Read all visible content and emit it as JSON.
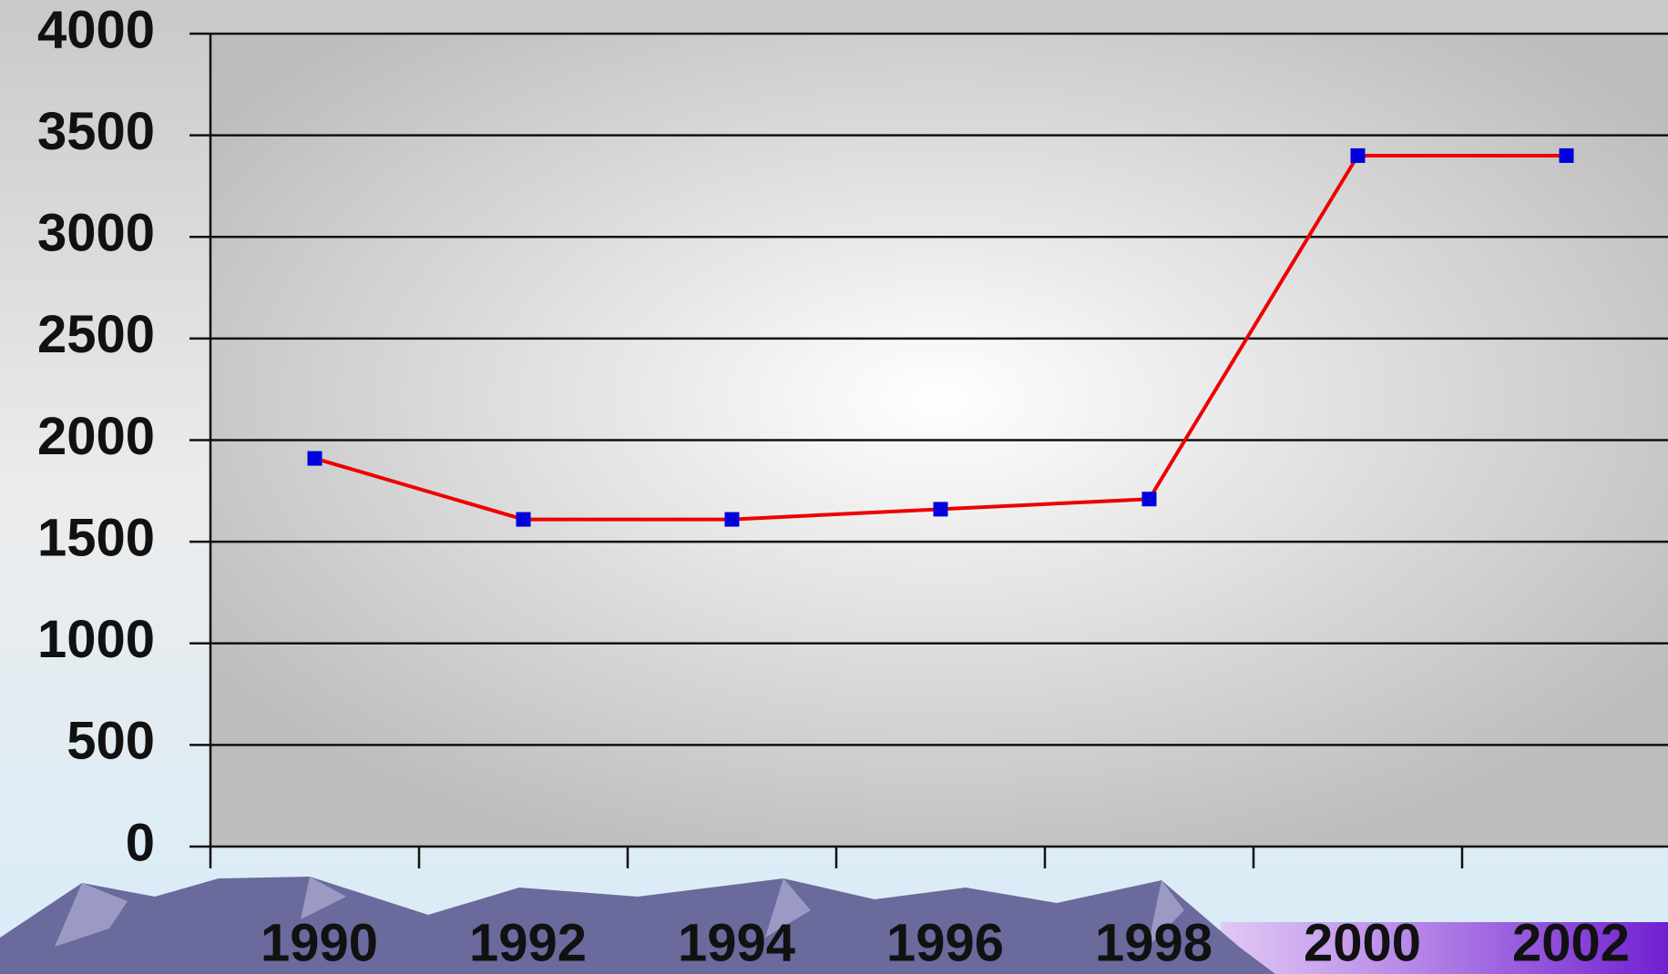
{
  "chart_data": {
    "type": "line",
    "categories": [
      "1990",
      "1992",
      "1994",
      "1996",
      "1998",
      "2000",
      "2002"
    ],
    "series": [
      {
        "color": "#ee0000",
        "marker_color": "#0000dd",
        "values": [
          1910,
          1610,
          1610,
          1660,
          1710,
          3400,
          3400
        ]
      }
    ],
    "ylim": [
      0,
      4000
    ],
    "yticks": [
      0,
      500,
      1000,
      1500,
      2000,
      2500,
      3000,
      3500,
      4000
    ],
    "grid": true
  }
}
